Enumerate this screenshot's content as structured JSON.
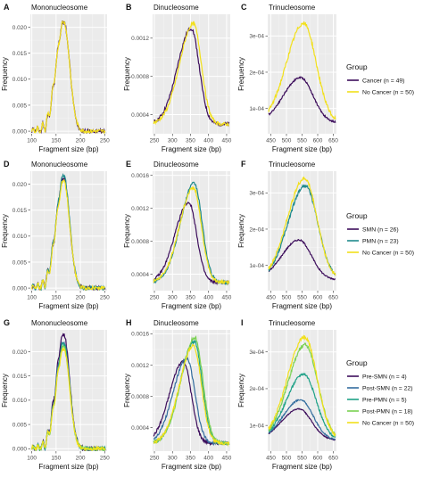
{
  "legends": [
    {
      "title": "Group",
      "entries": [
        {
          "label": "Cancer (n = 49)",
          "color": "#3d0e5c"
        },
        {
          "label": "No Cancer (n = 50)",
          "color": "#f2e01a"
        }
      ]
    },
    {
      "title": "Group",
      "entries": [
        {
          "label": "SMN (n = 26)",
          "color": "#3d0e5c"
        },
        {
          "label": "PMN (n = 23)",
          "color": "#1f8a8c"
        },
        {
          "label": "No Cancer (n = 50)",
          "color": "#f2e01a"
        }
      ]
    },
    {
      "title": "Group",
      "entries": [
        {
          "label": "Pre-SMN (n = 4)",
          "color": "#3d0e5c"
        },
        {
          "label": "Post-SMN (n = 22)",
          "color": "#336d9e"
        },
        {
          "label": "Pre-PMN (n = 5)",
          "color": "#1fa187"
        },
        {
          "label": "Post-PMN (n = 18)",
          "color": "#7ad151"
        },
        {
          "label": "No Cancer (n = 50)",
          "color": "#f2e01a"
        }
      ]
    }
  ],
  "chart_data": [
    {
      "letter": "A",
      "title": "Mononucleosome",
      "type": "line",
      "xlabel": "Fragment size (bp)",
      "ylabel": "Frequency",
      "xlim": [
        97,
        255
      ],
      "ylim": [
        -0.0005,
        0.0225
      ],
      "xticks": [
        100,
        150,
        200,
        250
      ],
      "yticks": [
        0.0,
        0.005,
        0.01,
        0.015,
        0.02
      ],
      "yticklabels": [
        "0.000",
        "0.005",
        "0.010",
        "0.015",
        "0.020"
      ],
      "peak": {
        "shape": "mono",
        "center": 166,
        "floor": 0
      },
      "series": [
        {
          "color": "#3d0e5c",
          "peak": 0.021
        },
        {
          "color": "#f2e01a",
          "peak": 0.021
        }
      ]
    },
    {
      "letter": "B",
      "title": "Dinucleosome",
      "type": "line",
      "xlabel": "Fragment size (bp)",
      "ylabel": "Frequency",
      "xlim": [
        245,
        460
      ],
      "ylim": [
        0.0002,
        0.00145
      ],
      "xticks": [
        250,
        300,
        350,
        400,
        450
      ],
      "yticks": [
        0.0004,
        0.0008,
        0.0012
      ],
      "yticklabels": [
        "0.0004",
        "0.0008",
        "0.0012"
      ],
      "peak": {
        "shape": "di",
        "floor": 0.0003
      },
      "series": [
        {
          "color": "#3d0e5c",
          "peak": 0.0013,
          "center": 352
        },
        {
          "color": "#f2e01a",
          "peak": 0.00135,
          "center": 358
        }
      ]
    },
    {
      "letter": "C",
      "title": "Trinucleosome",
      "type": "line",
      "xlabel": "Fragment size (bp)",
      "ylabel": "Frequency",
      "xlim": [
        440,
        660
      ],
      "ylim": [
        3e-05,
        0.00036
      ],
      "xticks": [
        450,
        500,
        550,
        600,
        650
      ],
      "yticks": [
        0.0001,
        0.0002,
        0.0003
      ],
      "yticklabels": [
        "1e-04",
        "2e-04",
        "3e-04"
      ],
      "peak": {
        "shape": "tri",
        "floor": 6e-05
      },
      "series": [
        {
          "color": "#3d0e5c",
          "peak": 0.000185,
          "center": 545
        },
        {
          "color": "#f2e01a",
          "peak": 0.000335,
          "center": 555
        }
      ]
    },
    {
      "letter": "D",
      "title": "Mononucleosome",
      "type": "line",
      "xlabel": "Fragment size (bp)",
      "ylabel": "Frequency",
      "xlim": [
        97,
        255
      ],
      "ylim": [
        -0.0005,
        0.0225
      ],
      "xticks": [
        100,
        150,
        200,
        250
      ],
      "yticks": [
        0.0,
        0.005,
        0.01,
        0.015,
        0.02
      ],
      "yticklabels": [
        "0.000",
        "0.005",
        "0.010",
        "0.015",
        "0.020"
      ],
      "peak": {
        "shape": "mono",
        "center": 166,
        "floor": 0
      },
      "series": [
        {
          "color": "#3d0e5c",
          "peak": 0.021
        },
        {
          "color": "#1f8a8c",
          "peak": 0.0215
        },
        {
          "color": "#f2e01a",
          "peak": 0.0205
        }
      ]
    },
    {
      "letter": "E",
      "title": "Dinucleosome",
      "type": "line",
      "xlabel": "Fragment size (bp)",
      "ylabel": "Frequency",
      "xlim": [
        245,
        460
      ],
      "ylim": [
        0.0002,
        0.00165
      ],
      "xticks": [
        250,
        300,
        350,
        400,
        450
      ],
      "yticks": [
        0.0004,
        0.0008,
        0.0012,
        0.0016
      ],
      "yticklabels": [
        "0.0004",
        "0.0008",
        "0.0012",
        "0.0016"
      ],
      "peak": {
        "shape": "di",
        "floor": 0.0003
      },
      "series": [
        {
          "color": "#3d0e5c",
          "peak": 0.00127,
          "center": 345
        },
        {
          "color": "#1f8a8c",
          "peak": 0.0015,
          "center": 360
        },
        {
          "color": "#f2e01a",
          "peak": 0.00145,
          "center": 358
        }
      ]
    },
    {
      "letter": "F",
      "title": "Trinucleosome",
      "type": "line",
      "xlabel": "Fragment size (bp)",
      "ylabel": "Frequency",
      "xlim": [
        440,
        660
      ],
      "ylim": [
        3e-05,
        0.00036
      ],
      "xticks": [
        450,
        500,
        550,
        600,
        650
      ],
      "yticks": [
        0.0001,
        0.0002,
        0.0003
      ],
      "yticklabels": [
        "1e-04",
        "2e-04",
        "3e-04"
      ],
      "peak": {
        "shape": "tri",
        "floor": 6e-05
      },
      "series": [
        {
          "color": "#3d0e5c",
          "peak": 0.00017,
          "center": 540
        },
        {
          "color": "#1f8a8c",
          "peak": 0.00032,
          "center": 560
        },
        {
          "color": "#f2e01a",
          "peak": 0.00034,
          "center": 558
        }
      ]
    },
    {
      "letter": "G",
      "title": "Mononucleosome",
      "type": "line",
      "xlabel": "Fragment size (bp)",
      "ylabel": "Frequency",
      "xlim": [
        97,
        255
      ],
      "ylim": [
        -0.0005,
        0.0245
      ],
      "xticks": [
        100,
        150,
        200,
        250
      ],
      "yticks": [
        0.0,
        0.005,
        0.01,
        0.015,
        0.02
      ],
      "yticklabels": [
        "0.000",
        "0.005",
        "0.010",
        "0.015",
        "0.020"
      ],
      "peak": {
        "shape": "mono",
        "center": 166,
        "floor": 0
      },
      "series": [
        {
          "color": "#3d0e5c",
          "peak": 0.0235
        },
        {
          "color": "#336d9e",
          "peak": 0.022
        },
        {
          "color": "#1fa187",
          "peak": 0.0215
        },
        {
          "color": "#7ad151",
          "peak": 0.021
        },
        {
          "color": "#f2e01a",
          "peak": 0.0205
        }
      ]
    },
    {
      "letter": "H",
      "title": "Dinucleosome",
      "type": "line",
      "xlabel": "Fragment size (bp)",
      "ylabel": "Frequency",
      "xlim": [
        245,
        460
      ],
      "ylim": [
        0.0001,
        0.00165
      ],
      "xticks": [
        250,
        300,
        350,
        400,
        450
      ],
      "yticks": [
        0.0004,
        0.0008,
        0.0012,
        0.0016
      ],
      "yticklabels": [
        "0.0004",
        "0.0008",
        "0.0012",
        "0.0016"
      ],
      "peak": {
        "shape": "di",
        "floor": 0.0002
      },
      "series": [
        {
          "color": "#3d0e5c",
          "peak": 0.00125,
          "center": 330
        },
        {
          "color": "#336d9e",
          "peak": 0.00128,
          "center": 340
        },
        {
          "color": "#1fa187",
          "peak": 0.0015,
          "center": 360
        },
        {
          "color": "#7ad151",
          "peak": 0.00155,
          "center": 362
        },
        {
          "color": "#f2e01a",
          "peak": 0.00145,
          "center": 358
        }
      ]
    },
    {
      "letter": "I",
      "title": "Trinucleosome",
      "type": "line",
      "xlabel": "Fragment size (bp)",
      "ylabel": "Frequency",
      "xlim": [
        440,
        660
      ],
      "ylim": [
        3e-05,
        0.00036
      ],
      "xticks": [
        450,
        500,
        550,
        600,
        650
      ],
      "yticks": [
        0.0001,
        0.0002,
        0.0003
      ],
      "yticklabels": [
        "1e-04",
        "2e-04",
        "3e-04"
      ],
      "peak": {
        "shape": "tri",
        "floor": 6e-05
      },
      "series": [
        {
          "color": "#3d0e5c",
          "peak": 0.000145,
          "center": 540
        },
        {
          "color": "#336d9e",
          "peak": 0.00017,
          "center": 545
        },
        {
          "color": "#1fa187",
          "peak": 0.00024,
          "center": 555
        },
        {
          "color": "#7ad151",
          "peak": 0.00032,
          "center": 560
        },
        {
          "color": "#f2e01a",
          "peak": 0.00034,
          "center": 558
        }
      ]
    }
  ]
}
